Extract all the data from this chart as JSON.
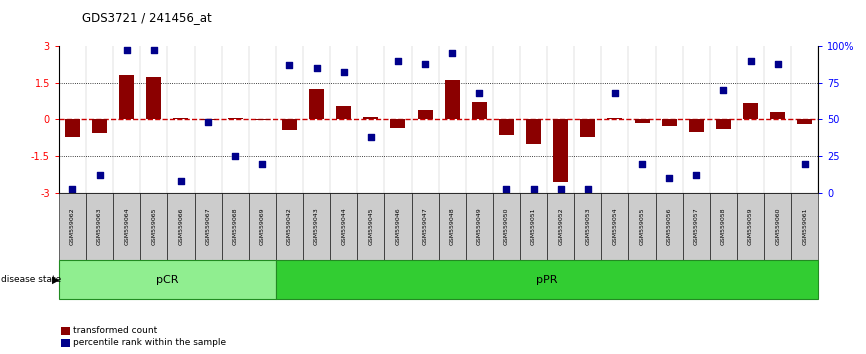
{
  "title": "GDS3721 / 241456_at",
  "samples": [
    "GSM559062",
    "GSM559063",
    "GSM559064",
    "GSM559065",
    "GSM559066",
    "GSM559067",
    "GSM559068",
    "GSM559069",
    "GSM559042",
    "GSM559043",
    "GSM559044",
    "GSM559045",
    "GSM559046",
    "GSM559047",
    "GSM559048",
    "GSM559049",
    "GSM559050",
    "GSM559051",
    "GSM559052",
    "GSM559053",
    "GSM559054",
    "GSM559055",
    "GSM559056",
    "GSM559057",
    "GSM559058",
    "GSM559059",
    "GSM559060",
    "GSM559061"
  ],
  "bar_values": [
    -0.7,
    -0.55,
    1.82,
    1.75,
    0.08,
    -0.04,
    0.06,
    -0.04,
    -0.45,
    1.25,
    0.55,
    0.12,
    -0.35,
    0.38,
    1.62,
    0.72,
    -0.65,
    -1.02,
    -2.55,
    -0.72,
    0.06,
    -0.15,
    -0.28,
    -0.52,
    -0.38,
    0.68,
    0.3,
    -0.18
  ],
  "dot_percentiles": [
    3,
    12,
    97,
    97,
    8,
    48,
    25,
    20,
    87,
    85,
    82,
    38,
    90,
    88,
    95,
    68,
    3,
    3,
    3,
    3,
    68,
    20,
    10,
    12,
    70,
    90,
    88,
    20
  ],
  "pCR_count": 8,
  "pPR_count": 20,
  "bar_color": "#8B0000",
  "dot_color": "#00008B",
  "zero_line_color": "#CC0000",
  "pCR_color": "#90EE90",
  "pPR_color": "#32CD32",
  "sample_box_color": "#CCCCCC",
  "legend_bar_label": "transformed count",
  "legend_dot_label": "percentile rank within the sample",
  "disease_state_label": "disease state",
  "pCR_label": "pCR",
  "pPR_label": "pPR"
}
